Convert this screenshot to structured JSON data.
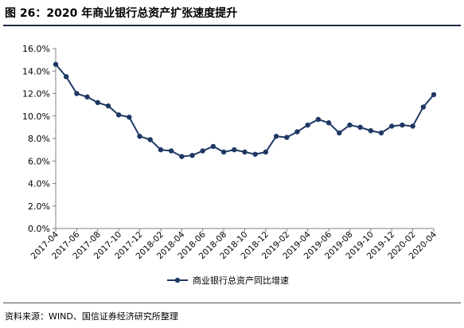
{
  "figure": {
    "title": "图 26：2020 年商业银行总资产扩张速度提升",
    "source": "资料来源：WIND、国信证券经济研究所整理"
  },
  "chart_data": {
    "type": "line",
    "x": [
      "2017-04",
      "2017-05",
      "2017-06",
      "2017-07",
      "2017-08",
      "2017-09",
      "2017-10",
      "2017-11",
      "2017-12",
      "2018-01",
      "2018-02",
      "2018-03",
      "2018-04",
      "2018-05",
      "2018-06",
      "2018-07",
      "2018-08",
      "2018-09",
      "2018-10",
      "2018-11",
      "2018-12",
      "2019-01",
      "2019-02",
      "2019-03",
      "2019-04",
      "2019-05",
      "2019-06",
      "2019-07",
      "2019-08",
      "2019-09",
      "2019-10",
      "2019-11",
      "2019-12",
      "2020-01",
      "2020-02",
      "2020-03",
      "2020-04"
    ],
    "x_tick_labels": [
      "2017-04",
      "2017-06",
      "2017-08",
      "2017-10",
      "2017-12",
      "2018-02",
      "2018-04",
      "2018-06",
      "2018-08",
      "2018-10",
      "2018-12",
      "2019-02",
      "2019-04",
      "2019-06",
      "2019-08",
      "2019-10",
      "2019-12",
      "2020-02",
      "2020-04"
    ],
    "series": [
      {
        "name": "商业银行总资产同比增速",
        "color": "#1f3864",
        "values": [
          14.6,
          13.5,
          12.0,
          11.7,
          11.2,
          10.9,
          10.1,
          9.9,
          8.2,
          7.9,
          7.0,
          6.9,
          6.4,
          6.5,
          6.9,
          7.3,
          6.8,
          7.0,
          6.8,
          6.6,
          6.8,
          8.2,
          8.1,
          8.6,
          9.2,
          9.7,
          9.4,
          8.5,
          9.2,
          9.0,
          8.7,
          8.5,
          9.1,
          9.2,
          9.1,
          10.8,
          11.9
        ]
      }
    ],
    "ylim": [
      0,
      16
    ],
    "y_ticks": [
      "0.0%",
      "2.0%",
      "4.0%",
      "6.0%",
      "8.0%",
      "10.0%",
      "12.0%",
      "14.0%",
      "16.0%"
    ],
    "grid": false,
    "legend": "bottom-center"
  }
}
